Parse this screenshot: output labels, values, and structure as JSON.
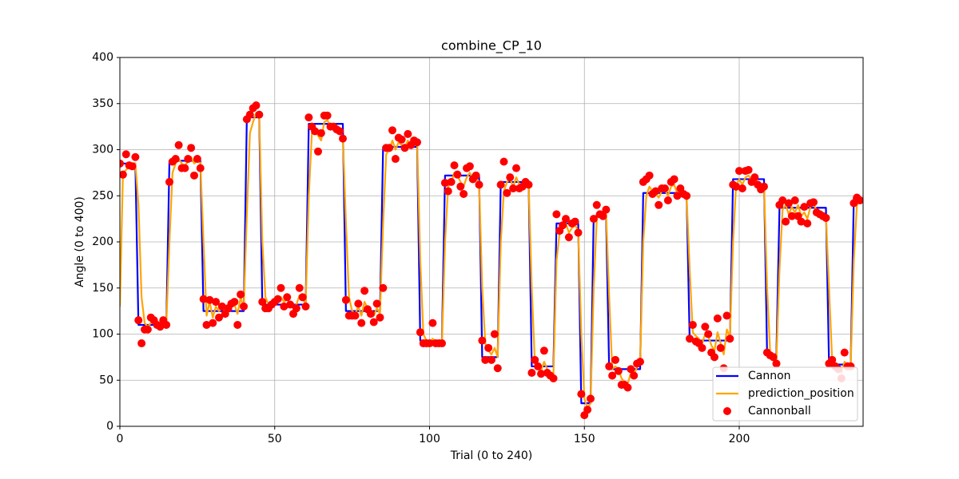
{
  "chart_data": {
    "type": "line",
    "title": "combine_CP_10",
    "x_label": "Trial (0 to 240)",
    "y_label": "Angle (0 to 400)",
    "xlim": [
      0,
      240
    ],
    "xticks": [
      0,
      50,
      100,
      150,
      200
    ],
    "ylim": [
      0,
      400
    ],
    "yticks": [
      0,
      50,
      100,
      150,
      200,
      250,
      300,
      350,
      400
    ],
    "grid": true,
    "legend": "lower right",
    "x": [
      0,
      1,
      2,
      3,
      4,
      5,
      6,
      7,
      8,
      9,
      10,
      11,
      12,
      13,
      14,
      15,
      16,
      17,
      18,
      19,
      20,
      21,
      22,
      23,
      24,
      25,
      26,
      27,
      28,
      29,
      30,
      31,
      32,
      33,
      34,
      35,
      36,
      37,
      38,
      39,
      40,
      41,
      42,
      43,
      44,
      45,
      46,
      47,
      48,
      49,
      50,
      51,
      52,
      53,
      54,
      55,
      56,
      57,
      58,
      59,
      60,
      61,
      62,
      63,
      64,
      65,
      66,
      67,
      68,
      69,
      70,
      71,
      72,
      73,
      74,
      75,
      76,
      77,
      78,
      79,
      80,
      81,
      82,
      83,
      84,
      85,
      86,
      87,
      88,
      89,
      90,
      91,
      92,
      93,
      94,
      95,
      96,
      97,
      98,
      99,
      100,
      101,
      102,
      103,
      104,
      105,
      106,
      107,
      108,
      109,
      110,
      111,
      112,
      113,
      114,
      115,
      116,
      117,
      118,
      119,
      120,
      121,
      122,
      123,
      124,
      125,
      126,
      127,
      128,
      129,
      130,
      131,
      132,
      133,
      134,
      135,
      136,
      137,
      138,
      139,
      140,
      141,
      142,
      143,
      144,
      145,
      146,
      147,
      148,
      149,
      150,
      151,
      152,
      153,
      154,
      155,
      156,
      157,
      158,
      159,
      160,
      161,
      162,
      163,
      164,
      165,
      166,
      167,
      168,
      169,
      170,
      171,
      172,
      173,
      174,
      175,
      176,
      177,
      178,
      179,
      180,
      181,
      182,
      183,
      184,
      185,
      186,
      187,
      188,
      189,
      190,
      191,
      192,
      193,
      194,
      195,
      196,
      197,
      198,
      199,
      200,
      201,
      202,
      203,
      204,
      205,
      206,
      207,
      208,
      209,
      210,
      211,
      212,
      213,
      214,
      215,
      216,
      217,
      218,
      219,
      220,
      221,
      222,
      223,
      224,
      225,
      226,
      227,
      228,
      229,
      230,
      231,
      232,
      233,
      234,
      235,
      236,
      237,
      238,
      239
    ],
    "series": [
      {
        "name": "Cannon",
        "color": "#0000ff",
        "style": "line",
        "values": [
          285,
          285,
          285,
          285,
          285,
          285,
          110,
          110,
          110,
          110,
          110,
          110,
          110,
          110,
          110,
          110,
          288,
          288,
          288,
          288,
          288,
          288,
          288,
          288,
          288,
          288,
          288,
          125,
          125,
          125,
          125,
          125,
          125,
          125,
          125,
          125,
          125,
          125,
          125,
          125,
          125,
          335,
          335,
          335,
          335,
          335,
          132,
          132,
          132,
          132,
          132,
          132,
          132,
          132,
          132,
          132,
          132,
          132,
          132,
          132,
          132,
          328,
          328,
          328,
          328,
          328,
          328,
          328,
          328,
          328,
          328,
          328,
          328,
          125,
          125,
          125,
          125,
          125,
          125,
          125,
          125,
          125,
          125,
          125,
          125,
          303,
          303,
          303,
          303,
          303,
          303,
          303,
          303,
          303,
          303,
          303,
          303,
          93,
          93,
          93,
          93,
          93,
          93,
          93,
          93,
          272,
          272,
          272,
          272,
          272,
          272,
          272,
          272,
          272,
          272,
          272,
          272,
          75,
          75,
          75,
          75,
          75,
          75,
          265,
          265,
          265,
          265,
          265,
          265,
          265,
          265,
          265,
          265,
          65,
          65,
          65,
          65,
          65,
          65,
          65,
          65,
          220,
          220,
          220,
          220,
          220,
          220,
          220,
          220,
          25,
          25,
          25,
          25,
          228,
          228,
          228,
          228,
          228,
          62,
          62,
          62,
          62,
          62,
          62,
          62,
          62,
          62,
          62,
          62,
          253,
          253,
          253,
          253,
          253,
          253,
          253,
          253,
          253,
          253,
          253,
          253,
          253,
          253,
          253,
          93,
          93,
          93,
          93,
          93,
          93,
          93,
          93,
          93,
          93,
          93,
          93,
          93,
          93,
          268,
          268,
          268,
          268,
          268,
          268,
          268,
          268,
          268,
          268,
          268,
          78,
          78,
          78,
          78,
          237,
          237,
          237,
          237,
          237,
          237,
          237,
          237,
          237,
          237,
          237,
          237,
          237,
          237,
          237,
          237,
          67,
          67,
          67,
          67,
          67,
          67,
          67,
          67,
          248,
          248,
          248
        ]
      },
      {
        "name": "prediction_position",
        "color": "#ffa500",
        "style": "line",
        "values": [
          130,
          275,
          278,
          282,
          282,
          285,
          240,
          140,
          112,
          108,
          112,
          113,
          111,
          110,
          112,
          111,
          200,
          275,
          285,
          290,
          285,
          283,
          287,
          292,
          285,
          288,
          286,
          200,
          120,
          135,
          118,
          130,
          125,
          128,
          124,
          130,
          131,
          132,
          122,
          140,
          128,
          230,
          318,
          330,
          340,
          338,
          200,
          140,
          132,
          130,
          133,
          135,
          140,
          135,
          138,
          133,
          130,
          132,
          142,
          138,
          133,
          250,
          318,
          325,
          315,
          310,
          330,
          332,
          325,
          323,
          320,
          318,
          315,
          220,
          140,
          125,
          122,
          130,
          120,
          135,
          128,
          124,
          120,
          128,
          122,
          220,
          295,
          300,
          310,
          300,
          308,
          305,
          302,
          310,
          305,
          307,
          308,
          180,
          100,
          93,
          91,
          95,
          92,
          91,
          90,
          200,
          260,
          265,
          275,
          272,
          265,
          260,
          270,
          275,
          268,
          270,
          265,
          150,
          90,
          82,
          78,
          85,
          75,
          200,
          255,
          265,
          268,
          260,
          270,
          262,
          262,
          264,
          263,
          150,
          70,
          66,
          60,
          70,
          62,
          58,
          56,
          180,
          210,
          215,
          220,
          210,
          215,
          218,
          212,
          100,
          30,
          20,
          25,
          150,
          225,
          230,
          228,
          232,
          140,
          62,
          65,
          62,
          52,
          48,
          46,
          58,
          56,
          64,
          68,
          200,
          250,
          260,
          255,
          252,
          248,
          255,
          256,
          250,
          260,
          262,
          252,
          255,
          252,
          250,
          170,
          102,
          98,
          95,
          90,
          100,
          98,
          88,
          82,
          102,
          90,
          78,
          105,
          97,
          200,
          262,
          268,
          262,
          270,
          272,
          268,
          268,
          264,
          262,
          262,
          150,
          80,
          78,
          72,
          170,
          235,
          240,
          230,
          238,
          232,
          240,
          228,
          232,
          225,
          238,
          240,
          235,
          232,
          230,
          228,
          150,
          72,
          68,
          64,
          58,
          70,
          66,
          66,
          180,
          240,
          245
        ]
      },
      {
        "name": "Cannonball",
        "color": "#ff0000",
        "style": "scatter",
        "values": [
          285,
          273,
          295,
          283,
          282,
          292,
          115,
          90,
          105,
          105,
          118,
          115,
          110,
          108,
          115,
          110,
          265,
          287,
          290,
          305,
          280,
          280,
          290,
          302,
          272,
          290,
          280,
          138,
          110,
          137,
          112,
          135,
          118,
          130,
          122,
          128,
          133,
          135,
          110,
          143,
          130,
          333,
          338,
          345,
          348,
          338,
          135,
          128,
          128,
          132,
          135,
          138,
          150,
          130,
          140,
          132,
          122,
          128,
          150,
          140,
          130,
          335,
          325,
          320,
          298,
          318,
          337,
          337,
          325,
          325,
          322,
          320,
          312,
          137,
          120,
          120,
          120,
          133,
          112,
          147,
          127,
          122,
          113,
          133,
          118,
          150,
          302,
          302,
          321,
          290,
          313,
          311,
          302,
          317,
          305,
          310,
          308,
          102,
          90,
          90,
          90,
          112,
          90,
          90,
          90,
          264,
          255,
          265,
          283,
          273,
          260,
          252,
          280,
          282,
          268,
          272,
          262,
          93,
          72,
          85,
          72,
          100,
          63,
          262,
          287,
          253,
          270,
          258,
          280,
          258,
          260,
          265,
          262,
          58,
          72,
          65,
          57,
          82,
          58,
          55,
          52,
          230,
          212,
          218,
          225,
          205,
          220,
          222,
          210,
          35,
          12,
          18,
          30,
          225,
          240,
          230,
          228,
          235,
          65,
          55,
          72,
          60,
          45,
          45,
          42,
          62,
          55,
          68,
          70,
          265,
          268,
          272,
          252,
          255,
          240,
          258,
          258,
          245,
          265,
          268,
          250,
          258,
          252,
          250,
          95,
          110,
          92,
          90,
          85,
          108,
          100,
          80,
          75,
          117,
          85,
          63,
          120,
          95,
          262,
          260,
          277,
          258,
          277,
          278,
          265,
          270,
          262,
          257,
          260,
          80,
          77,
          75,
          68,
          240,
          245,
          222,
          242,
          228,
          245,
          228,
          222,
          238,
          220,
          242,
          243,
          232,
          230,
          228,
          226,
          68,
          72,
          65,
          62,
          52,
          80,
          65,
          65,
          242,
          248,
          245
        ]
      }
    ]
  }
}
